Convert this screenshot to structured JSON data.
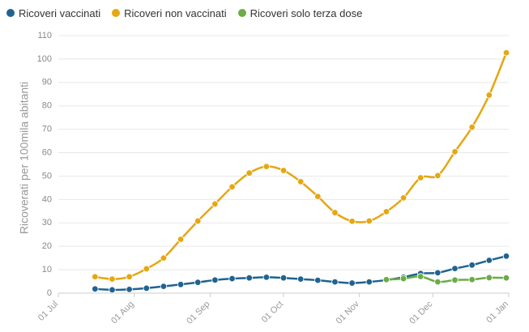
{
  "chart_data": {
    "type": "line",
    "title": "",
    "xlabel": "",
    "ylabel": "Ricoverati per 100mila abitanti",
    "ylim": [
      0,
      110
    ],
    "xlim": [
      "2021-07-01",
      "2022-01-01"
    ],
    "yticks": [
      0,
      10,
      20,
      30,
      40,
      50,
      60,
      70,
      80,
      90,
      100,
      110
    ],
    "xticks": [
      {
        "date": "2021-07-01",
        "label": "01 Jul"
      },
      {
        "date": "2021-08-01",
        "label": "01 Aug"
      },
      {
        "date": "2021-09-01",
        "label": "01 Sep"
      },
      {
        "date": "2021-10-01",
        "label": "01 Oct"
      },
      {
        "date": "2021-11-01",
        "label": "01 Nov"
      },
      {
        "date": "2021-12-01",
        "label": "01 Dec"
      },
      {
        "date": "2022-01-01",
        "label": "01 Jan"
      }
    ],
    "grid": true,
    "legend_position": "top-left",
    "series": [
      {
        "name": "Ricoveri vaccinati",
        "color": "#1f6391",
        "x": [
          "2021-07-16",
          "2021-07-23",
          "2021-07-30",
          "2021-08-06",
          "2021-08-13",
          "2021-08-20",
          "2021-08-27",
          "2021-09-03",
          "2021-09-10",
          "2021-09-17",
          "2021-09-24",
          "2021-10-01",
          "2021-10-08",
          "2021-10-15",
          "2021-10-22",
          "2021-10-29",
          "2021-11-05",
          "2021-11-12",
          "2021-11-19",
          "2021-11-26",
          "2021-12-03",
          "2021-12-10",
          "2021-12-17",
          "2021-12-24",
          "2021-12-31"
        ],
        "y": [
          1.8,
          1.4,
          1.6,
          2.1,
          2.9,
          3.7,
          4.6,
          5.6,
          6.2,
          6.5,
          6.8,
          6.5,
          6.0,
          5.5,
          4.8,
          4.3,
          4.8,
          5.6,
          6.8,
          8.4,
          8.7,
          10.5,
          12.0,
          14.0,
          15.8
        ]
      },
      {
        "name": "Ricoveri non vaccinati",
        "color": "#e5a712",
        "x": [
          "2021-07-16",
          "2021-07-23",
          "2021-07-30",
          "2021-08-06",
          "2021-08-13",
          "2021-08-20",
          "2021-08-27",
          "2021-09-03",
          "2021-09-10",
          "2021-09-17",
          "2021-09-24",
          "2021-10-01",
          "2021-10-08",
          "2021-10-15",
          "2021-10-22",
          "2021-10-29",
          "2021-11-05",
          "2021-11-12",
          "2021-11-19",
          "2021-11-26",
          "2021-12-03",
          "2021-12-10",
          "2021-12-17",
          "2021-12-24",
          "2021-12-31"
        ],
        "y": [
          7.0,
          6.0,
          7.0,
          10.4,
          15.0,
          23.0,
          30.8,
          38.1,
          45.4,
          51.3,
          54.1,
          52.4,
          47.6,
          41.3,
          34.4,
          30.7,
          30.8,
          34.8,
          40.7,
          49.3,
          50.2,
          60.4,
          70.9,
          84.6,
          102.7
        ]
      },
      {
        "name": "Ricoveri solo terza dose",
        "color": "#6aac46",
        "x": [
          "2021-11-12",
          "2021-11-19",
          "2021-11-26",
          "2021-12-03",
          "2021-12-10",
          "2021-12-17",
          "2021-12-24",
          "2021-12-31"
        ],
        "y": [
          5.8,
          6.2,
          7.1,
          4.8,
          5.6,
          5.8,
          6.6,
          6.5
        ]
      }
    ]
  }
}
